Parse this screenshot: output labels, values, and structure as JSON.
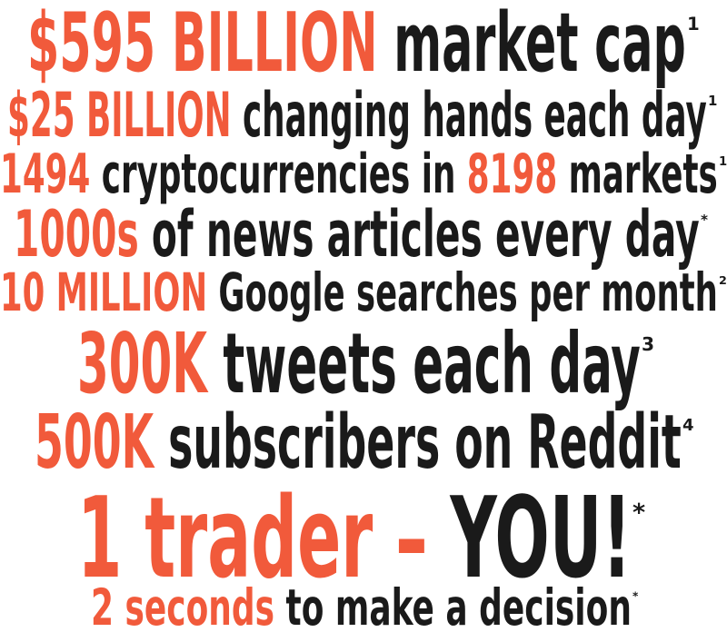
{
  "colors": {
    "accent": "#f15a3b",
    "text": "#1a1a1a"
  },
  "lines": [
    {
      "segments": [
        {
          "text": "$595 BILLION",
          "accent": true
        },
        {
          "text": " market cap",
          "accent": false
        }
      ],
      "note": "1"
    },
    {
      "segments": [
        {
          "text": "$25 BILLION",
          "accent": true
        },
        {
          "text": " changing hands each day",
          "accent": false
        }
      ],
      "note": "1"
    },
    {
      "segments": [
        {
          "text": "1494",
          "accent": true
        },
        {
          "text": " cryptocurrencies in ",
          "accent": false
        },
        {
          "text": "8198",
          "accent": true
        },
        {
          "text": " markets",
          "accent": false
        }
      ],
      "note": "1"
    },
    {
      "segments": [
        {
          "text": "1000s",
          "accent": true
        },
        {
          "text": " of news articles every day",
          "accent": false
        }
      ],
      "note": "*"
    },
    {
      "segments": [
        {
          "text": "10 MILLION",
          "accent": true
        },
        {
          "text": " Google searches per month",
          "accent": false
        }
      ],
      "note": "2"
    },
    {
      "segments": [
        {
          "text": "300K",
          "accent": true
        },
        {
          "text": " tweets each day",
          "accent": false
        }
      ],
      "note": "3"
    },
    {
      "segments": [
        {
          "text": "500K",
          "accent": true
        },
        {
          "text": " subscribers on Reddit",
          "accent": false
        }
      ],
      "note": "4"
    },
    {
      "segments": [
        {
          "text": "1 trader – ",
          "accent": true
        },
        {
          "text": "YOU!",
          "accent": false
        }
      ],
      "note": "*"
    },
    {
      "segments": [
        {
          "text": "2 seconds",
          "accent": true
        },
        {
          "text": " to make a decision",
          "accent": false
        }
      ],
      "note": "*"
    }
  ]
}
